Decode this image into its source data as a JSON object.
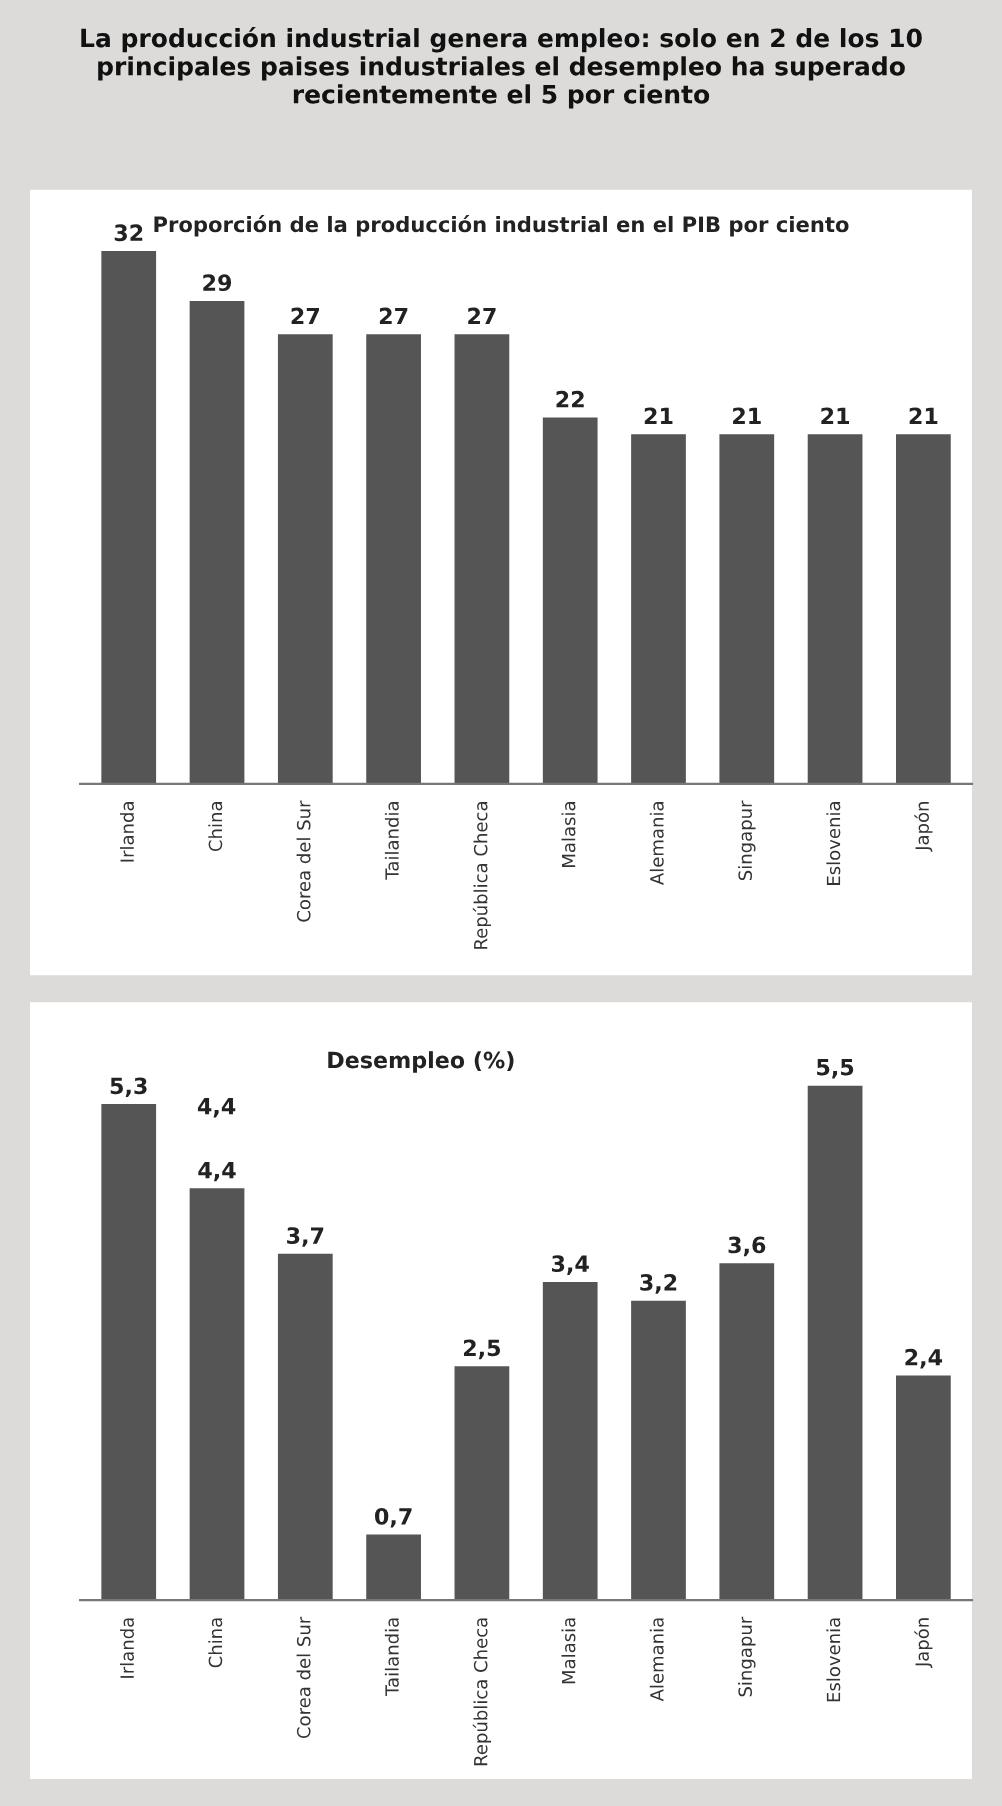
{
  "chart_data": [
    {
      "type": "bar",
      "title": "La producción industrial genera empleo: solo en 2 de los 10 principales paises industriales el desempleo ha superado recientemente el 5 por ciento",
      "subtitle": "Proporción de la producción industrial en el PIB por ciento",
      "categories": [
        "Irlanda",
        "China",
        "Corea del Sur",
        "Tailandia",
        "República Checa",
        "Malasia",
        "Alemania",
        "Singapur",
        "Eslovenia",
        "Japón"
      ],
      "values": [
        32,
        29,
        27,
        27,
        27,
        22,
        21,
        21,
        21,
        21
      ],
      "color": "#555555",
      "data_labels": true
    },
    {
      "type": "bar",
      "title": "Desempleo (%)",
      "categories": [
        "Irlanda",
        "China",
        "Corea del Sur",
        "Tailandia",
        "República Checa",
        "Malasia",
        "Alemania",
        "Singapur",
        "Eslovenia",
        "Japón"
      ],
      "values": [
        5.3,
        4.4,
        3.7,
        0.7,
        2.5,
        3.4,
        3.2,
        3.6,
        5.5,
        2.4
      ],
      "color": "#555555",
      "value_labels": [
        "5,3",
        "4,4",
        "3,7",
        "0,7",
        "2,5",
        "3,4",
        "3,2",
        "3,6",
        "5,5",
        "2,4"
      ],
      "annotations": [
        "4,4"
      ]
    }
  ]
}
